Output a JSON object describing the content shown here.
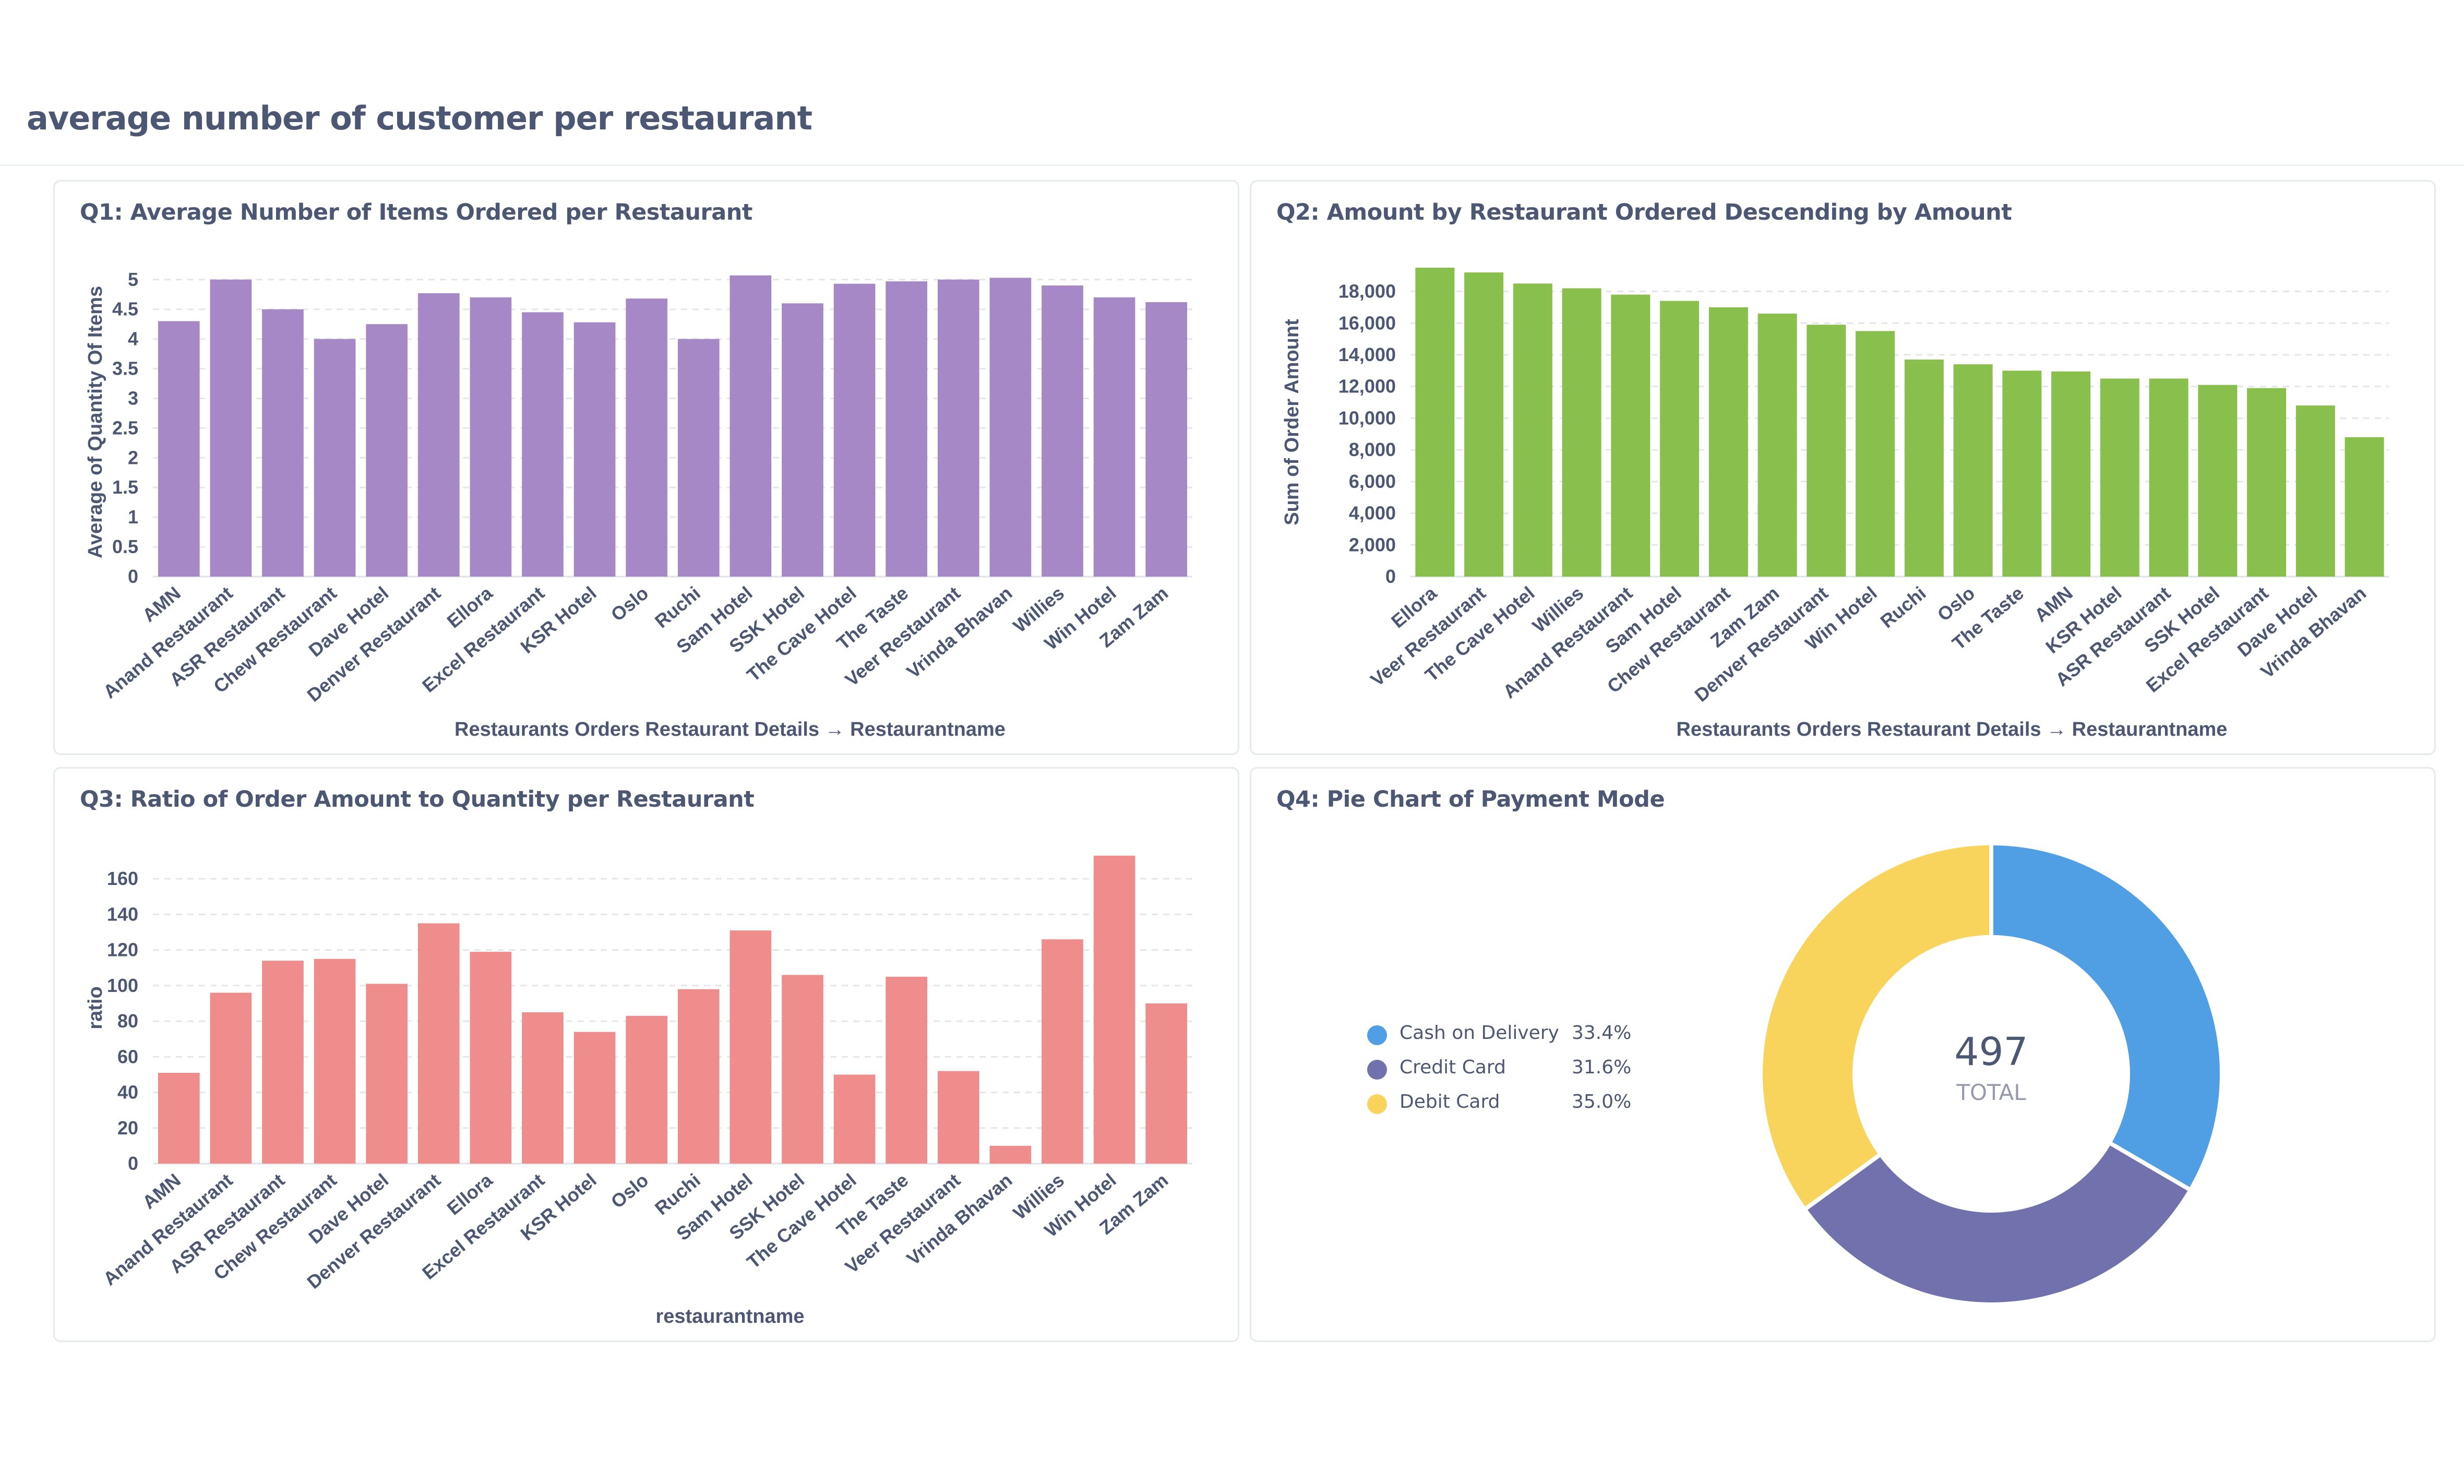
{
  "page": {
    "title": "average number of customer per restaurant"
  },
  "colors": {
    "purple": "#a688c7",
    "green": "#88bf4d",
    "red": "#ef8c8c",
    "blue": "#509ee3",
    "indigo": "#7172ad",
    "yellow": "#f9d45c"
  },
  "chart_data": [
    {
      "id": "q1",
      "type": "bar",
      "title": "Q1: Average Number of Items Ordered per Restaurant",
      "xlabel": "Restaurants Orders Restaurant Details → Restaurantname",
      "ylabel": "Average of Quantity Of Items",
      "ylim": [
        0,
        5.2
      ],
      "yticks": [
        "0",
        "0.5",
        "1",
        "1.5",
        "2",
        "2.5",
        "3",
        "3.5",
        "4",
        "4.5",
        "5"
      ],
      "grid": true,
      "categories": [
        "AMN",
        "Anand Restaurant",
        "ASR Restaurant",
        "Chew Restaurant",
        "Dave Hotel",
        "Denver Restaurant",
        "Ellora",
        "Excel Restaurant",
        "KSR Hotel",
        "Oslo",
        "Ruchi",
        "Sam Hotel",
        "SSK Hotel",
        "The Cave Hotel",
        "The Taste",
        "Veer Restaurant",
        "Vrinda Bhavan",
        "Willies",
        "Win Hotel",
        "Zam Zam"
      ],
      "values": [
        4.3,
        5.0,
        4.5,
        4.0,
        4.25,
        4.77,
        4.7,
        4.45,
        4.28,
        4.68,
        4.0,
        5.07,
        4.6,
        4.93,
        4.97,
        5.0,
        5.03,
        4.9,
        4.7,
        4.62
      ]
    },
    {
      "id": "q2",
      "type": "bar",
      "title": "Q2: Amount by Restaurant Ordered Descending by Amount",
      "xlabel": "Restaurants Orders Restaurant Details → Restaurantname",
      "ylabel": "Sum of Order Amount",
      "ylim": [
        0,
        19500
      ],
      "yticks": [
        "0",
        "2,000",
        "4,000",
        "6,000",
        "8,000",
        "10,000",
        "12,000",
        "14,000",
        "16,000",
        "18,000"
      ],
      "grid": true,
      "categories": [
        "Ellora",
        "Veer Restaurant",
        "The Cave Hotel",
        "Willies",
        "Anand Restaurant",
        "Sam Hotel",
        "Chew Restaurant",
        "Zam Zam",
        "Denver Restaurant",
        "Win Hotel",
        "Ruchi",
        "Oslo",
        "The Taste",
        "AMN",
        "KSR Hotel",
        "ASR Restaurant",
        "SSK Hotel",
        "Excel Restaurant",
        "Dave Hotel",
        "Vrinda Bhavan"
      ],
      "values": [
        19500,
        19200,
        18500,
        18200,
        17800,
        17400,
        17000,
        16600,
        15900,
        15500,
        13700,
        13400,
        13000,
        12950,
        12500,
        12500,
        12100,
        11900,
        10800,
        8800
      ]
    },
    {
      "id": "q3",
      "type": "bar",
      "title": "Q3: Ratio of Order Amount to Quantity per Restaurant",
      "xlabel": "restaurantname",
      "ylabel": "ratio",
      "ylim": [
        0,
        175
      ],
      "yticks": [
        "0",
        "20",
        "40",
        "60",
        "80",
        "100",
        "120",
        "140",
        "160"
      ],
      "grid": true,
      "categories": [
        "AMN",
        "Anand Restaurant",
        "ASR Restaurant",
        "Chew Restaurant",
        "Dave Hotel",
        "Denver Restaurant",
        "Ellora",
        "Excel Restaurant",
        "KSR Hotel",
        "Oslo",
        "Ruchi",
        "Sam Hotel",
        "SSK Hotel",
        "The Cave Hotel",
        "The Taste",
        "Veer Restaurant",
        "Vrinda Bhavan",
        "Willies",
        "Win Hotel",
        "Zam Zam"
      ],
      "values": [
        51,
        96,
        114,
        115,
        101,
        135,
        119,
        85,
        74,
        83,
        98,
        131,
        106,
        50,
        105,
        52,
        10,
        126,
        173,
        90
      ]
    },
    {
      "id": "q4",
      "type": "pie",
      "title": "Q4: Pie Chart of Payment Mode",
      "total": "497",
      "total_label": "TOTAL",
      "slices": [
        {
          "label": "Cash on Delivery",
          "percent": "33.4%",
          "value": 33.4,
          "color": "#509ee3"
        },
        {
          "label": "Credit Card",
          "percent": "31.6%",
          "value": 31.6,
          "color": "#7172ad"
        },
        {
          "label": "Debit Card",
          "percent": "35.0%",
          "value": 35.0,
          "color": "#f9d45c"
        }
      ]
    }
  ]
}
